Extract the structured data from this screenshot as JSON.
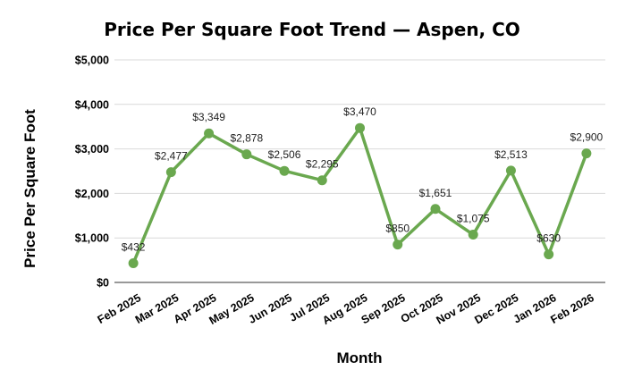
{
  "chart_data": {
    "type": "line",
    "title": "Price Per Square Foot Trend — Aspen, CO",
    "xlabel": "Month",
    "ylabel": "Price Per Square Foot",
    "categories": [
      "Feb 2025",
      "Mar 2025",
      "Apr 2025",
      "May 2025",
      "Jun 2025",
      "Jul 2025",
      "Aug 2025",
      "Sep 2025",
      "Oct 2025",
      "Nov 2025",
      "Dec 2025",
      "Jan 2026",
      "Feb 2026"
    ],
    "values": [
      432,
      2477,
      3349,
      2878,
      2506,
      2295,
      3470,
      850,
      1651,
      1075,
      2513,
      630,
      2900
    ],
    "data_labels": [
      "$432",
      "$2,477",
      "$3,349",
      "$2,878",
      "$2,506",
      "$2,295",
      "$3,470",
      "$850",
      "$1,651",
      "$1,075",
      "$2,513",
      "$630",
      "$2,900"
    ],
    "ylim": [
      0,
      5000
    ],
    "y_ticks": [
      0,
      1000,
      2000,
      3000,
      4000,
      5000
    ],
    "y_tick_labels": [
      "$0",
      "$1,000",
      "$2,000",
      "$3,000",
      "$4,000",
      "$5,000"
    ],
    "grid": true,
    "legend": "none",
    "line_color": "#6aa84f"
  }
}
